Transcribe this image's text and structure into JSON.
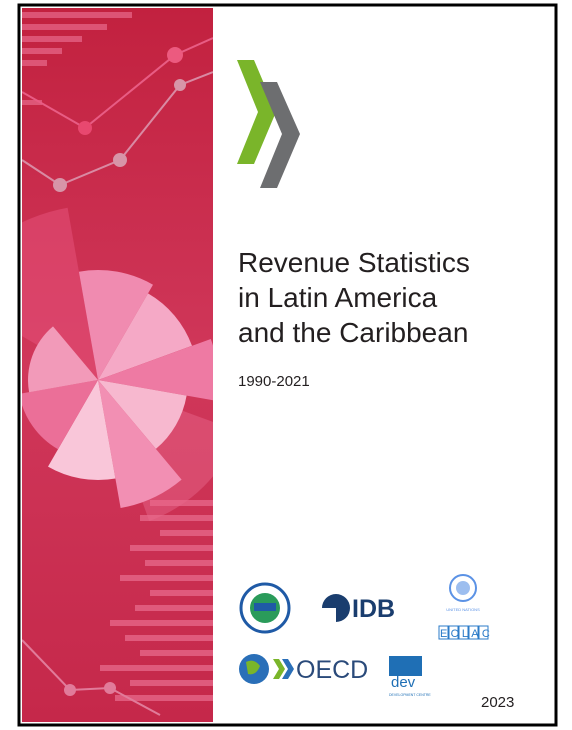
{
  "title_lines": [
    "Revenue Statistics",
    "in Latin America",
    "and the Caribbean"
  ],
  "years": "1990-2021",
  "publication_year": "2023",
  "logos": {
    "idb": "IDB",
    "oecd": "OECD",
    "un": "UNITED NATIONS",
    "eclac": "ECLAC",
    "dev": "dev",
    "dev_sub": "DEVELOPMENT CENTRE"
  }
}
